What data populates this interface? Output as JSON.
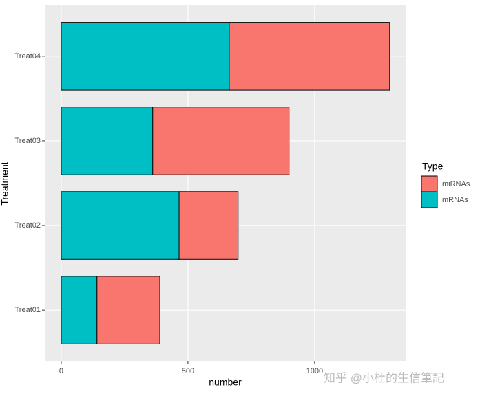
{
  "chart_data": {
    "type": "stacked_barh",
    "categories": [
      "Treat01",
      "Treat02",
      "Treat03",
      "Treat04"
    ],
    "series": [
      {
        "name": "miRNAs",
        "color": "#F8766D",
        "values": [
          248,
          233,
          538,
          633
        ]
      },
      {
        "name": "mRNAs",
        "color": "#00BFC4",
        "values": [
          141,
          465,
          361,
          663
        ]
      }
    ],
    "xlabel": "number",
    "ylabel": "Treatment",
    "legend_title": "Type",
    "xlim": [
      -65,
      1359
    ],
    "xticks": [
      0,
      500,
      1000
    ],
    "grid": true,
    "legend": "right",
    "watermark": "知乎 @小杜的生信筆記"
  }
}
